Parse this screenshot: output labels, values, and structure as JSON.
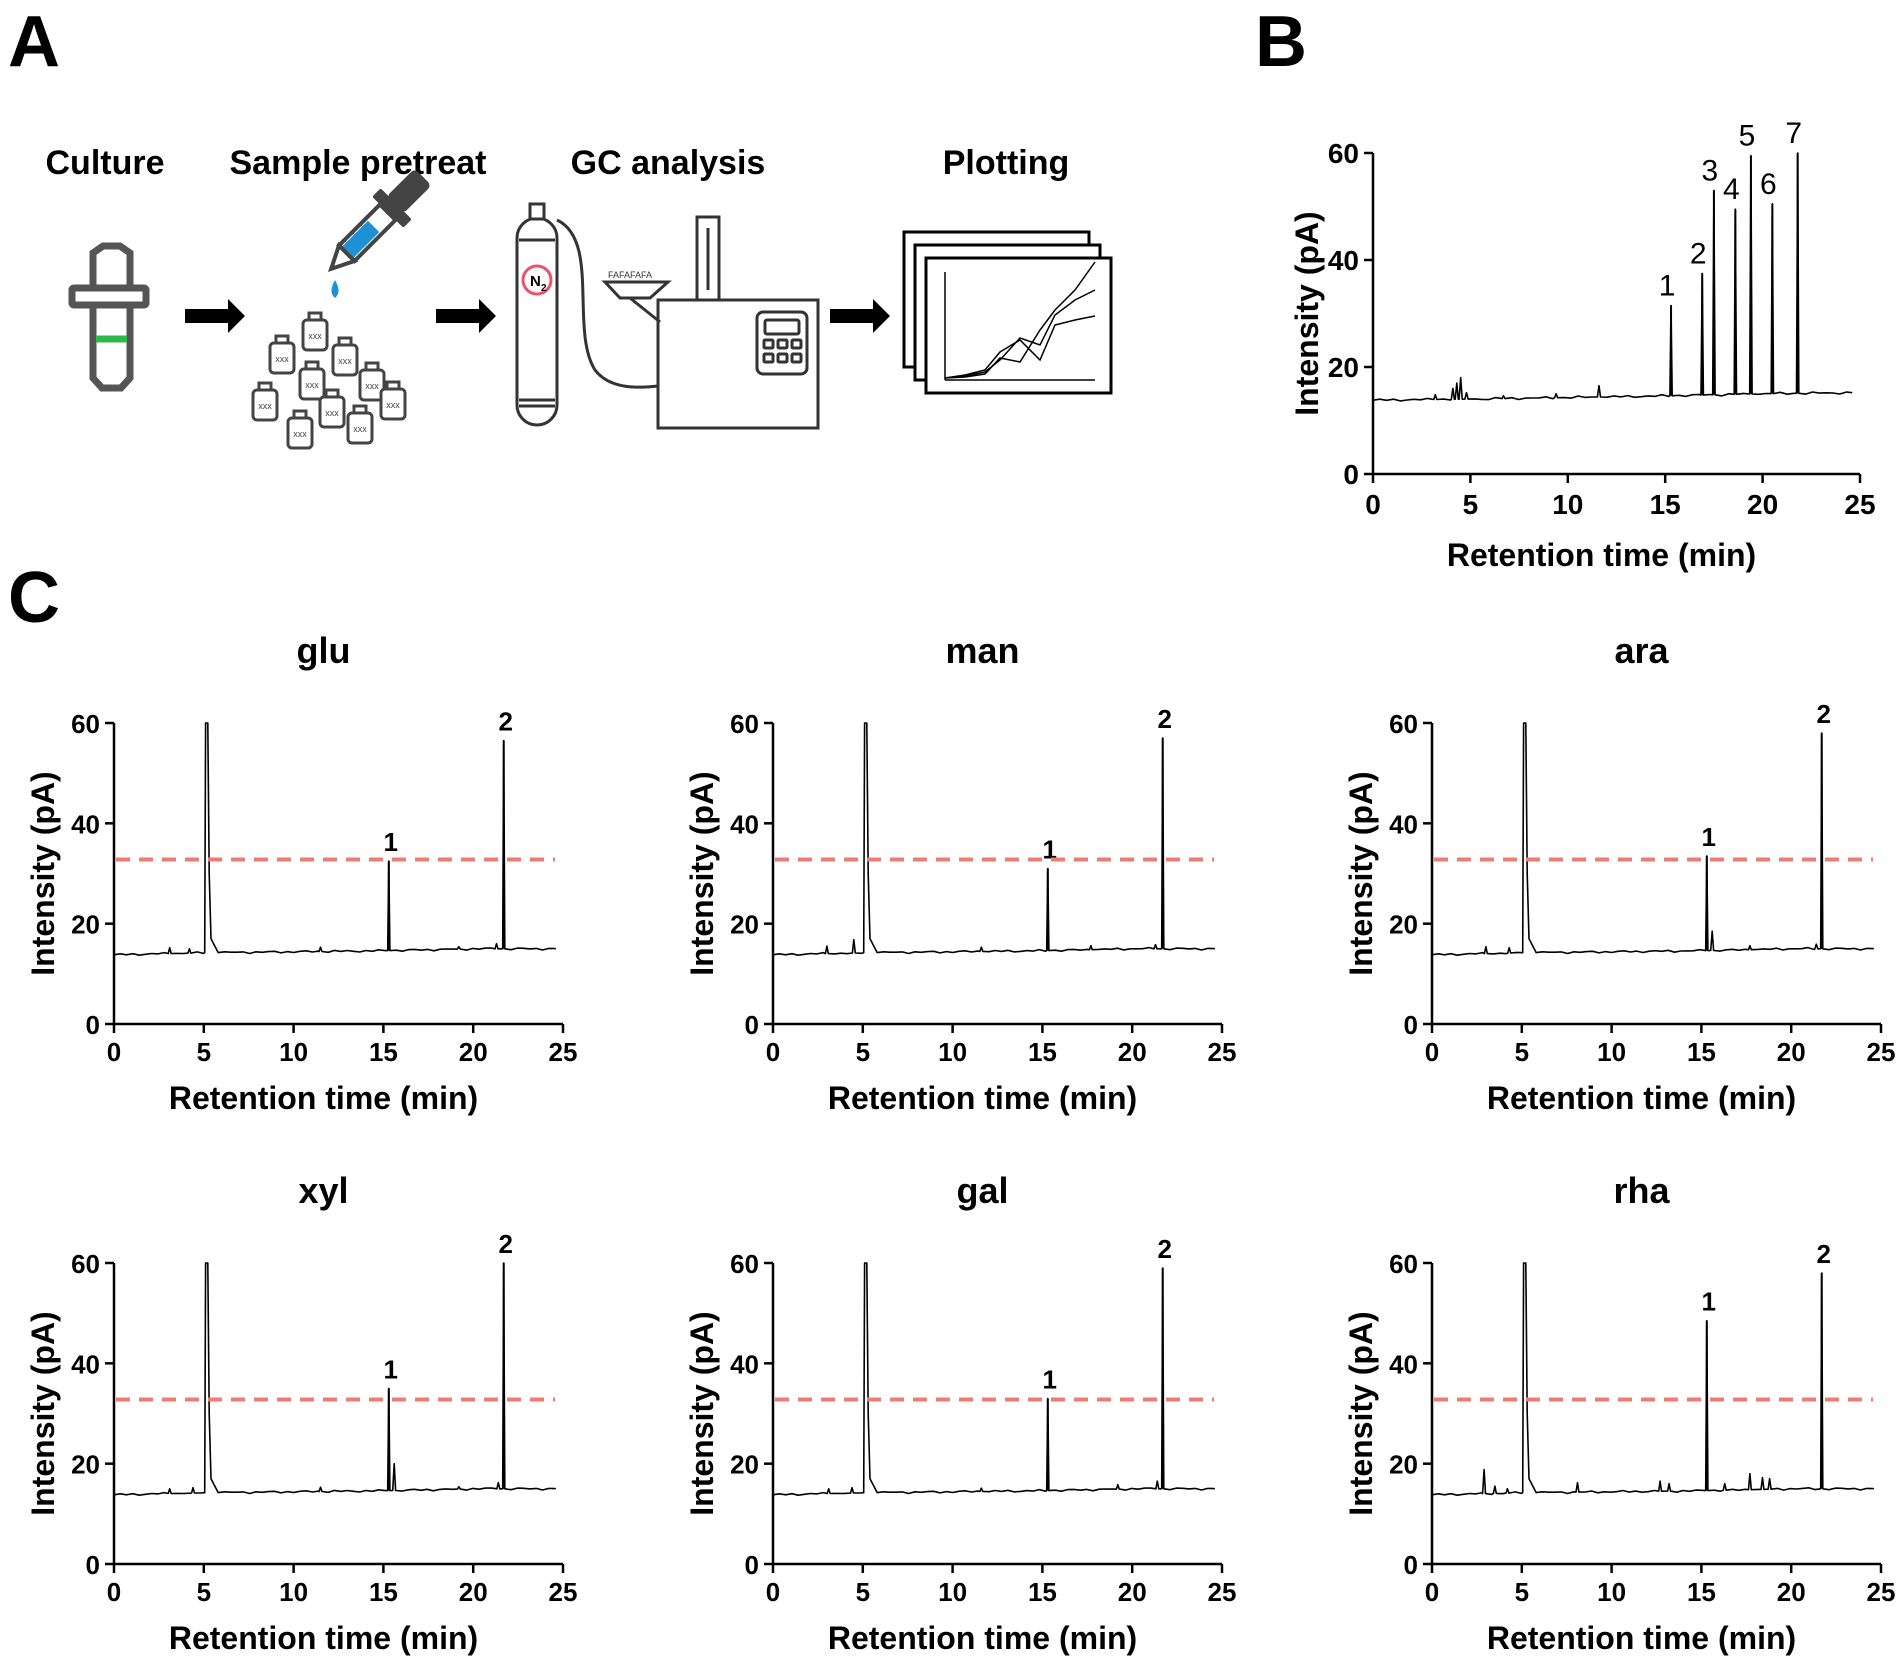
{
  "panels": {
    "A": "A",
    "B": "B",
    "C": "C"
  },
  "workflow": {
    "steps": [
      "Culture",
      "Sample pretreat",
      "GC analysis",
      "Plotting"
    ],
    "vial_text": "xxx",
    "gas_label": "N",
    "gas_subscript": "2",
    "colors": {
      "cap_green": "#2db84a",
      "pipette_blue": "#1e90d6",
      "n2_ring": "#e8546a"
    }
  },
  "chart_data": [
    {
      "id": "B",
      "type": "line",
      "title": "",
      "xlabel": "Retention time (min)",
      "ylabel": "Intensity (pA)",
      "xlim": [
        0,
        25
      ],
      "ylim": [
        0,
        60
      ],
      "xticks": [
        0,
        5,
        10,
        15,
        20,
        25
      ],
      "yticks": [
        0,
        20,
        40,
        60
      ],
      "baseline": [
        [
          0,
          13.8
        ],
        [
          5,
          14.0
        ],
        [
          10,
          14.3
        ],
        [
          15,
          14.6
        ],
        [
          20,
          15.0
        ],
        [
          24.6,
          15.2
        ]
      ],
      "noise": [
        [
          3.2,
          14.8
        ],
        [
          4.1,
          16.0
        ],
        [
          4.3,
          17.0
        ],
        [
          4.5,
          18.0
        ],
        [
          4.8,
          15.2
        ],
        [
          6.7,
          14.6
        ],
        [
          9.4,
          15.0
        ],
        [
          11.6,
          16.5
        ]
      ],
      "peaks": [
        {
          "x": 15.3,
          "y": 31.5,
          "label": "1"
        },
        {
          "x": 16.9,
          "y": 37.5,
          "label": "2"
        },
        {
          "x": 17.5,
          "y": 53.0,
          "label": "3"
        },
        {
          "x": 18.6,
          "y": 49.5,
          "label": "4"
        },
        {
          "x": 19.4,
          "y": 59.5,
          "label": "5"
        },
        {
          "x": 20.5,
          "y": 50.5,
          "label": "6"
        },
        {
          "x": 21.8,
          "y": 60.0,
          "label": "7"
        }
      ],
      "threshold": null
    },
    {
      "id": "glu",
      "type": "line",
      "title": "glu",
      "xlabel": "Retention time (min)",
      "ylabel": "Intensity (pA)",
      "xlim": [
        0,
        25
      ],
      "ylim": [
        0,
        60
      ],
      "xticks": [
        0,
        5,
        10,
        15,
        20,
        25
      ],
      "yticks": [
        0,
        20,
        40,
        60
      ],
      "baseline": [
        [
          0,
          13.8
        ],
        [
          5,
          14.2
        ],
        [
          10,
          14.4
        ],
        [
          15,
          14.6
        ],
        [
          20,
          15.0
        ],
        [
          24.6,
          15.0
        ]
      ],
      "solvent": {
        "x": 5.1,
        "tail": 5.4
      },
      "noise": [
        [
          3.1,
          15.2
        ],
        [
          4.2,
          15.0
        ],
        [
          11.5,
          15.3
        ],
        [
          19.2,
          15.4
        ],
        [
          21.3,
          16.0
        ]
      ],
      "peaks": [
        {
          "x": 15.3,
          "y": 32.5,
          "label": "1"
        },
        {
          "x": 21.7,
          "y": 56.5,
          "label": "2"
        }
      ],
      "threshold": 32.8
    },
    {
      "id": "man",
      "type": "line",
      "title": "man",
      "xlabel": "Retention time (min)",
      "ylabel": "Intensity (pA)",
      "xlim": [
        0,
        25
      ],
      "ylim": [
        0,
        60
      ],
      "xticks": [
        0,
        5,
        10,
        15,
        20,
        25
      ],
      "yticks": [
        0,
        20,
        40,
        60
      ],
      "baseline": [
        [
          0,
          13.8
        ],
        [
          5,
          14.2
        ],
        [
          10,
          14.4
        ],
        [
          15,
          14.6
        ],
        [
          20,
          15.0
        ],
        [
          24.6,
          15.0
        ]
      ],
      "solvent": {
        "x": 5.1,
        "tail": 5.4
      },
      "noise": [
        [
          3.0,
          15.5
        ],
        [
          4.5,
          16.8
        ],
        [
          11.6,
          15.3
        ],
        [
          17.7,
          15.6
        ],
        [
          21.3,
          15.8
        ]
      ],
      "peaks": [
        {
          "x": 15.3,
          "y": 31.0,
          "label": "1"
        },
        {
          "x": 21.7,
          "y": 57.0,
          "label": "2"
        }
      ],
      "threshold": 32.8
    },
    {
      "id": "ara",
      "type": "line",
      "title": "ara",
      "xlabel": "Retention time (min)",
      "ylabel": "Intensity (pA)",
      "xlim": [
        0,
        25
      ],
      "ylim": [
        0,
        60
      ],
      "xticks": [
        0,
        5,
        10,
        15,
        20,
        25
      ],
      "yticks": [
        0,
        20,
        40,
        60
      ],
      "baseline": [
        [
          0,
          13.8
        ],
        [
          5,
          14.2
        ],
        [
          10,
          14.4
        ],
        [
          15,
          14.6
        ],
        [
          20,
          15.0
        ],
        [
          24.6,
          15.0
        ]
      ],
      "solvent": {
        "x": 5.1,
        "tail": 5.4
      },
      "noise": [
        [
          3.0,
          15.4
        ],
        [
          4.3,
          15.2
        ],
        [
          15.6,
          18.5
        ],
        [
          17.7,
          15.6
        ],
        [
          21.4,
          15.9
        ]
      ],
      "peaks": [
        {
          "x": 15.3,
          "y": 33.5,
          "label": "1"
        },
        {
          "x": 21.7,
          "y": 58.0,
          "label": "2"
        }
      ],
      "threshold": 32.8
    },
    {
      "id": "xyl",
      "type": "line",
      "title": "xyl",
      "xlabel": "Retention time (min)",
      "ylabel": "Intensity (pA)",
      "xlim": [
        0,
        25
      ],
      "ylim": [
        0,
        60
      ],
      "xticks": [
        0,
        5,
        10,
        15,
        20,
        25
      ],
      "yticks": [
        0,
        20,
        40,
        60
      ],
      "baseline": [
        [
          0,
          13.8
        ],
        [
          5,
          14.2
        ],
        [
          10,
          14.4
        ],
        [
          15,
          14.6
        ],
        [
          20,
          15.0
        ],
        [
          24.6,
          15.0
        ]
      ],
      "solvent": {
        "x": 5.1,
        "tail": 5.4
      },
      "noise": [
        [
          3.1,
          15.0
        ],
        [
          4.4,
          15.2
        ],
        [
          11.5,
          15.3
        ],
        [
          15.6,
          20.0
        ],
        [
          19.2,
          15.4
        ],
        [
          21.4,
          16.2
        ]
      ],
      "peaks": [
        {
          "x": 15.3,
          "y": 35.0,
          "label": "1"
        },
        {
          "x": 21.7,
          "y": 60.0,
          "label": "2"
        }
      ],
      "threshold": 32.8
    },
    {
      "id": "gal",
      "type": "line",
      "title": "gal",
      "xlabel": "Retention time (min)",
      "ylabel": "Intensity (pA)",
      "xlim": [
        0,
        25
      ],
      "ylim": [
        0,
        60
      ],
      "xticks": [
        0,
        5,
        10,
        15,
        20,
        25
      ],
      "yticks": [
        0,
        20,
        40,
        60
      ],
      "baseline": [
        [
          0,
          13.8
        ],
        [
          5,
          14.2
        ],
        [
          10,
          14.4
        ],
        [
          15,
          14.6
        ],
        [
          20,
          15.0
        ],
        [
          24.6,
          15.0
        ]
      ],
      "solvent": {
        "x": 5.1,
        "tail": 5.4
      },
      "noise": [
        [
          3.1,
          15.0
        ],
        [
          4.4,
          15.2
        ],
        [
          11.6,
          15.1
        ],
        [
          19.2,
          15.8
        ],
        [
          21.4,
          16.5
        ]
      ],
      "peaks": [
        {
          "x": 15.3,
          "y": 33.0,
          "label": "1"
        },
        {
          "x": 21.7,
          "y": 59.0,
          "label": "2"
        }
      ],
      "threshold": 32.8
    },
    {
      "id": "rha",
      "type": "line",
      "title": "rha",
      "xlabel": "Retention time (min)",
      "ylabel": "Intensity (pA)",
      "xlim": [
        0,
        25
      ],
      "ylim": [
        0,
        60
      ],
      "xticks": [
        0,
        5,
        10,
        15,
        20,
        25
      ],
      "yticks": [
        0,
        20,
        40,
        60
      ],
      "baseline": [
        [
          0,
          13.8
        ],
        [
          5,
          14.2
        ],
        [
          10,
          14.4
        ],
        [
          15,
          14.6
        ],
        [
          20,
          15.0
        ],
        [
          24.6,
          15.0
        ]
      ],
      "solvent": {
        "x": 5.1,
        "tail": 5.4
      },
      "noise": [
        [
          2.9,
          18.8
        ],
        [
          3.5,
          15.5
        ],
        [
          4.2,
          15.0
        ],
        [
          8.1,
          16.2
        ],
        [
          12.7,
          16.5
        ],
        [
          13.2,
          16.0
        ],
        [
          16.3,
          16.0
        ],
        [
          17.7,
          18.0
        ],
        [
          18.4,
          17.2
        ],
        [
          18.8,
          17.0
        ]
      ],
      "peaks": [
        {
          "x": 15.3,
          "y": 48.5,
          "label": "1"
        },
        {
          "x": 21.7,
          "y": 58.0,
          "label": "2"
        }
      ],
      "threshold": 32.8
    }
  ],
  "colors": {
    "trace": "#000000",
    "threshold": "#ee7b74",
    "axis": "#000000"
  }
}
